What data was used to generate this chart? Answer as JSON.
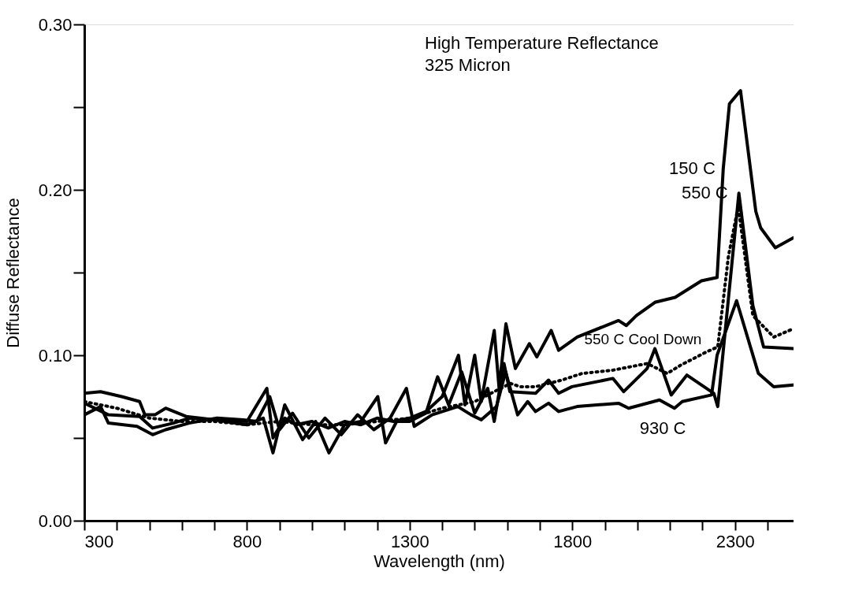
{
  "chart_data": {
    "type": "line",
    "title": "High Temperature Reflectance",
    "subtitle": "325 Micron",
    "xlabel": "Wavelength (nm)",
    "ylabel": "Diffuse Reflectance",
    "xlim": [
      300,
      2480
    ],
    "ylim": [
      0,
      0.3
    ],
    "xticks": [
      300,
      {
        "value": 400,
        "label": null
      },
      {
        "value": 500,
        "label": null
      },
      {
        "value": 600,
        "label": null
      },
      {
        "value": 700,
        "label": null
      },
      800,
      {
        "value": 900,
        "label": null
      },
      {
        "value": 1000,
        "label": null
      },
      {
        "value": 1100,
        "label": null
      },
      {
        "value": 1200,
        "label": null
      },
      1300,
      {
        "value": 1400,
        "label": null
      },
      {
        "value": 1500,
        "label": null
      },
      {
        "value": 1600,
        "label": null
      },
      {
        "value": 1700,
        "label": null
      },
      1800,
      {
        "value": 1900,
        "label": null
      },
      {
        "value": 2000,
        "label": null
      },
      {
        "value": 2100,
        "label": null
      },
      {
        "value": 2200,
        "label": null
      },
      2300,
      {
        "value": 2400,
        "label": null
      }
    ],
    "yticks": [
      {
        "value": 0,
        "label": "0.00"
      },
      {
        "value": 0.05,
        "label": null
      },
      {
        "value": 0.1,
        "label": "0.10"
      },
      {
        "value": 0.15,
        "label": null
      },
      {
        "value": 0.2,
        "label": "0.20"
      },
      {
        "value": 0.25,
        "label": null
      },
      {
        "value": 0.3,
        "label": "0.30"
      }
    ],
    "grid": false,
    "legend": false,
    "line_style": "solid",
    "marker": "none",
    "series": [
      {
        "name": "150 C",
        "color": "#000000",
        "x": [
          300,
          350,
          415,
          470,
          486,
          517,
          550,
          613,
          700,
          800,
          861,
          880,
          916,
          950,
          1000,
          1050,
          1100,
          1150,
          1200,
          1250,
          1300,
          1350,
          1400,
          1450,
          1470,
          1500,
          1520,
          1560,
          1575,
          1596,
          1625,
          1668,
          1691,
          1735,
          1758,
          1815,
          1942,
          1966,
          1997,
          2054,
          2116,
          2197,
          2245,
          2264,
          2283,
          2317,
          2364,
          2379,
          2424,
          2479
        ],
        "values": [
          0.077,
          0.078,
          0.075,
          0.072,
          0.064,
          0.064,
          0.068,
          0.063,
          0.061,
          0.06,
          0.08,
          0.05,
          0.062,
          0.058,
          0.06,
          0.056,
          0.06,
          0.058,
          0.062,
          0.06,
          0.062,
          0.066,
          0.075,
          0.1,
          0.07,
          0.1,
          0.072,
          0.115,
          0.08,
          0.119,
          0.092,
          0.107,
          0.099,
          0.115,
          0.103,
          0.111,
          0.121,
          0.118,
          0.124,
          0.132,
          0.135,
          0.145,
          0.147,
          0.213,
          0.252,
          0.26,
          0.187,
          0.177,
          0.165,
          0.171
        ]
      },
      {
        "name": "550 C",
        "color": "#000000",
        "x": [
          300,
          374,
          470,
          510,
          574,
          622,
          700,
          800,
          850,
          880,
          916,
          971,
          1011,
          1052,
          1100,
          1150,
          1202,
          1226,
          1260,
          1300,
          1350,
          1386,
          1420,
          1460,
          1500,
          1540,
          1560,
          1590,
          1608,
          1687,
          1727,
          1758,
          1799,
          1925,
          1958,
          2030,
          2054,
          2104,
          2152,
          2235,
          2247,
          2312,
          2355,
          2388,
          2479
        ],
        "values": [
          0.071,
          0.064,
          0.063,
          0.056,
          0.059,
          0.062,
          0.061,
          0.058,
          0.062,
          0.041,
          0.07,
          0.049,
          0.06,
          0.041,
          0.058,
          0.06,
          0.075,
          0.047,
          0.06,
          0.06,
          0.065,
          0.087,
          0.07,
          0.09,
          0.065,
          0.08,
          0.06,
          0.095,
          0.078,
          0.077,
          0.085,
          0.077,
          0.081,
          0.086,
          0.078,
          0.092,
          0.104,
          0.076,
          0.088,
          0.077,
          0.069,
          0.198,
          0.13,
          0.105,
          0.104
        ]
      },
      {
        "name": "550 C Cool Down",
        "color": "#000000",
        "line_style": "dotted",
        "x": [
          300,
          400,
          500,
          600,
          700,
          800,
          900,
          1000,
          1100,
          1200,
          1300,
          1400,
          1500,
          1560,
          1610,
          1639,
          1687,
          1768,
          1830,
          1925,
          2030,
          2092,
          2133,
          2212,
          2247,
          2280,
          2310,
          2355,
          2419,
          2479
        ],
        "values": [
          0.072,
          0.068,
          0.062,
          0.06,
          0.06,
          0.058,
          0.06,
          0.058,
          0.058,
          0.06,
          0.062,
          0.068,
          0.072,
          0.078,
          0.083,
          0.081,
          0.081,
          0.085,
          0.089,
          0.091,
          0.095,
          0.089,
          0.094,
          0.102,
          0.105,
          0.16,
          0.19,
          0.124,
          0.111,
          0.116
        ]
      },
      {
        "name": "930 C",
        "color": "#000000",
        "x": [
          300,
          350,
          374,
          462,
          510,
          550,
          622,
          708,
          789,
          830,
          870,
          900,
          940,
          990,
          1040,
          1090,
          1140,
          1190,
          1240,
          1290,
          1314,
          1369,
          1448,
          1489,
          1520,
          1567,
          1595,
          1632,
          1663,
          1687,
          1727,
          1758,
          1815,
          1942,
          1973,
          2068,
          2114,
          2138,
          2228,
          2245,
          2305,
          2372,
          2419,
          2479
        ],
        "values": [
          0.064,
          0.069,
          0.059,
          0.057,
          0.052,
          0.055,
          0.059,
          0.062,
          0.061,
          0.06,
          0.075,
          0.055,
          0.065,
          0.05,
          0.062,
          0.052,
          0.064,
          0.055,
          0.062,
          0.08,
          0.057,
          0.064,
          0.069,
          0.064,
          0.061,
          0.069,
          0.09,
          0.064,
          0.072,
          0.066,
          0.071,
          0.066,
          0.069,
          0.071,
          0.068,
          0.073,
          0.068,
          0.072,
          0.076,
          0.1,
          0.133,
          0.089,
          0.081,
          0.082
        ]
      }
    ]
  }
}
